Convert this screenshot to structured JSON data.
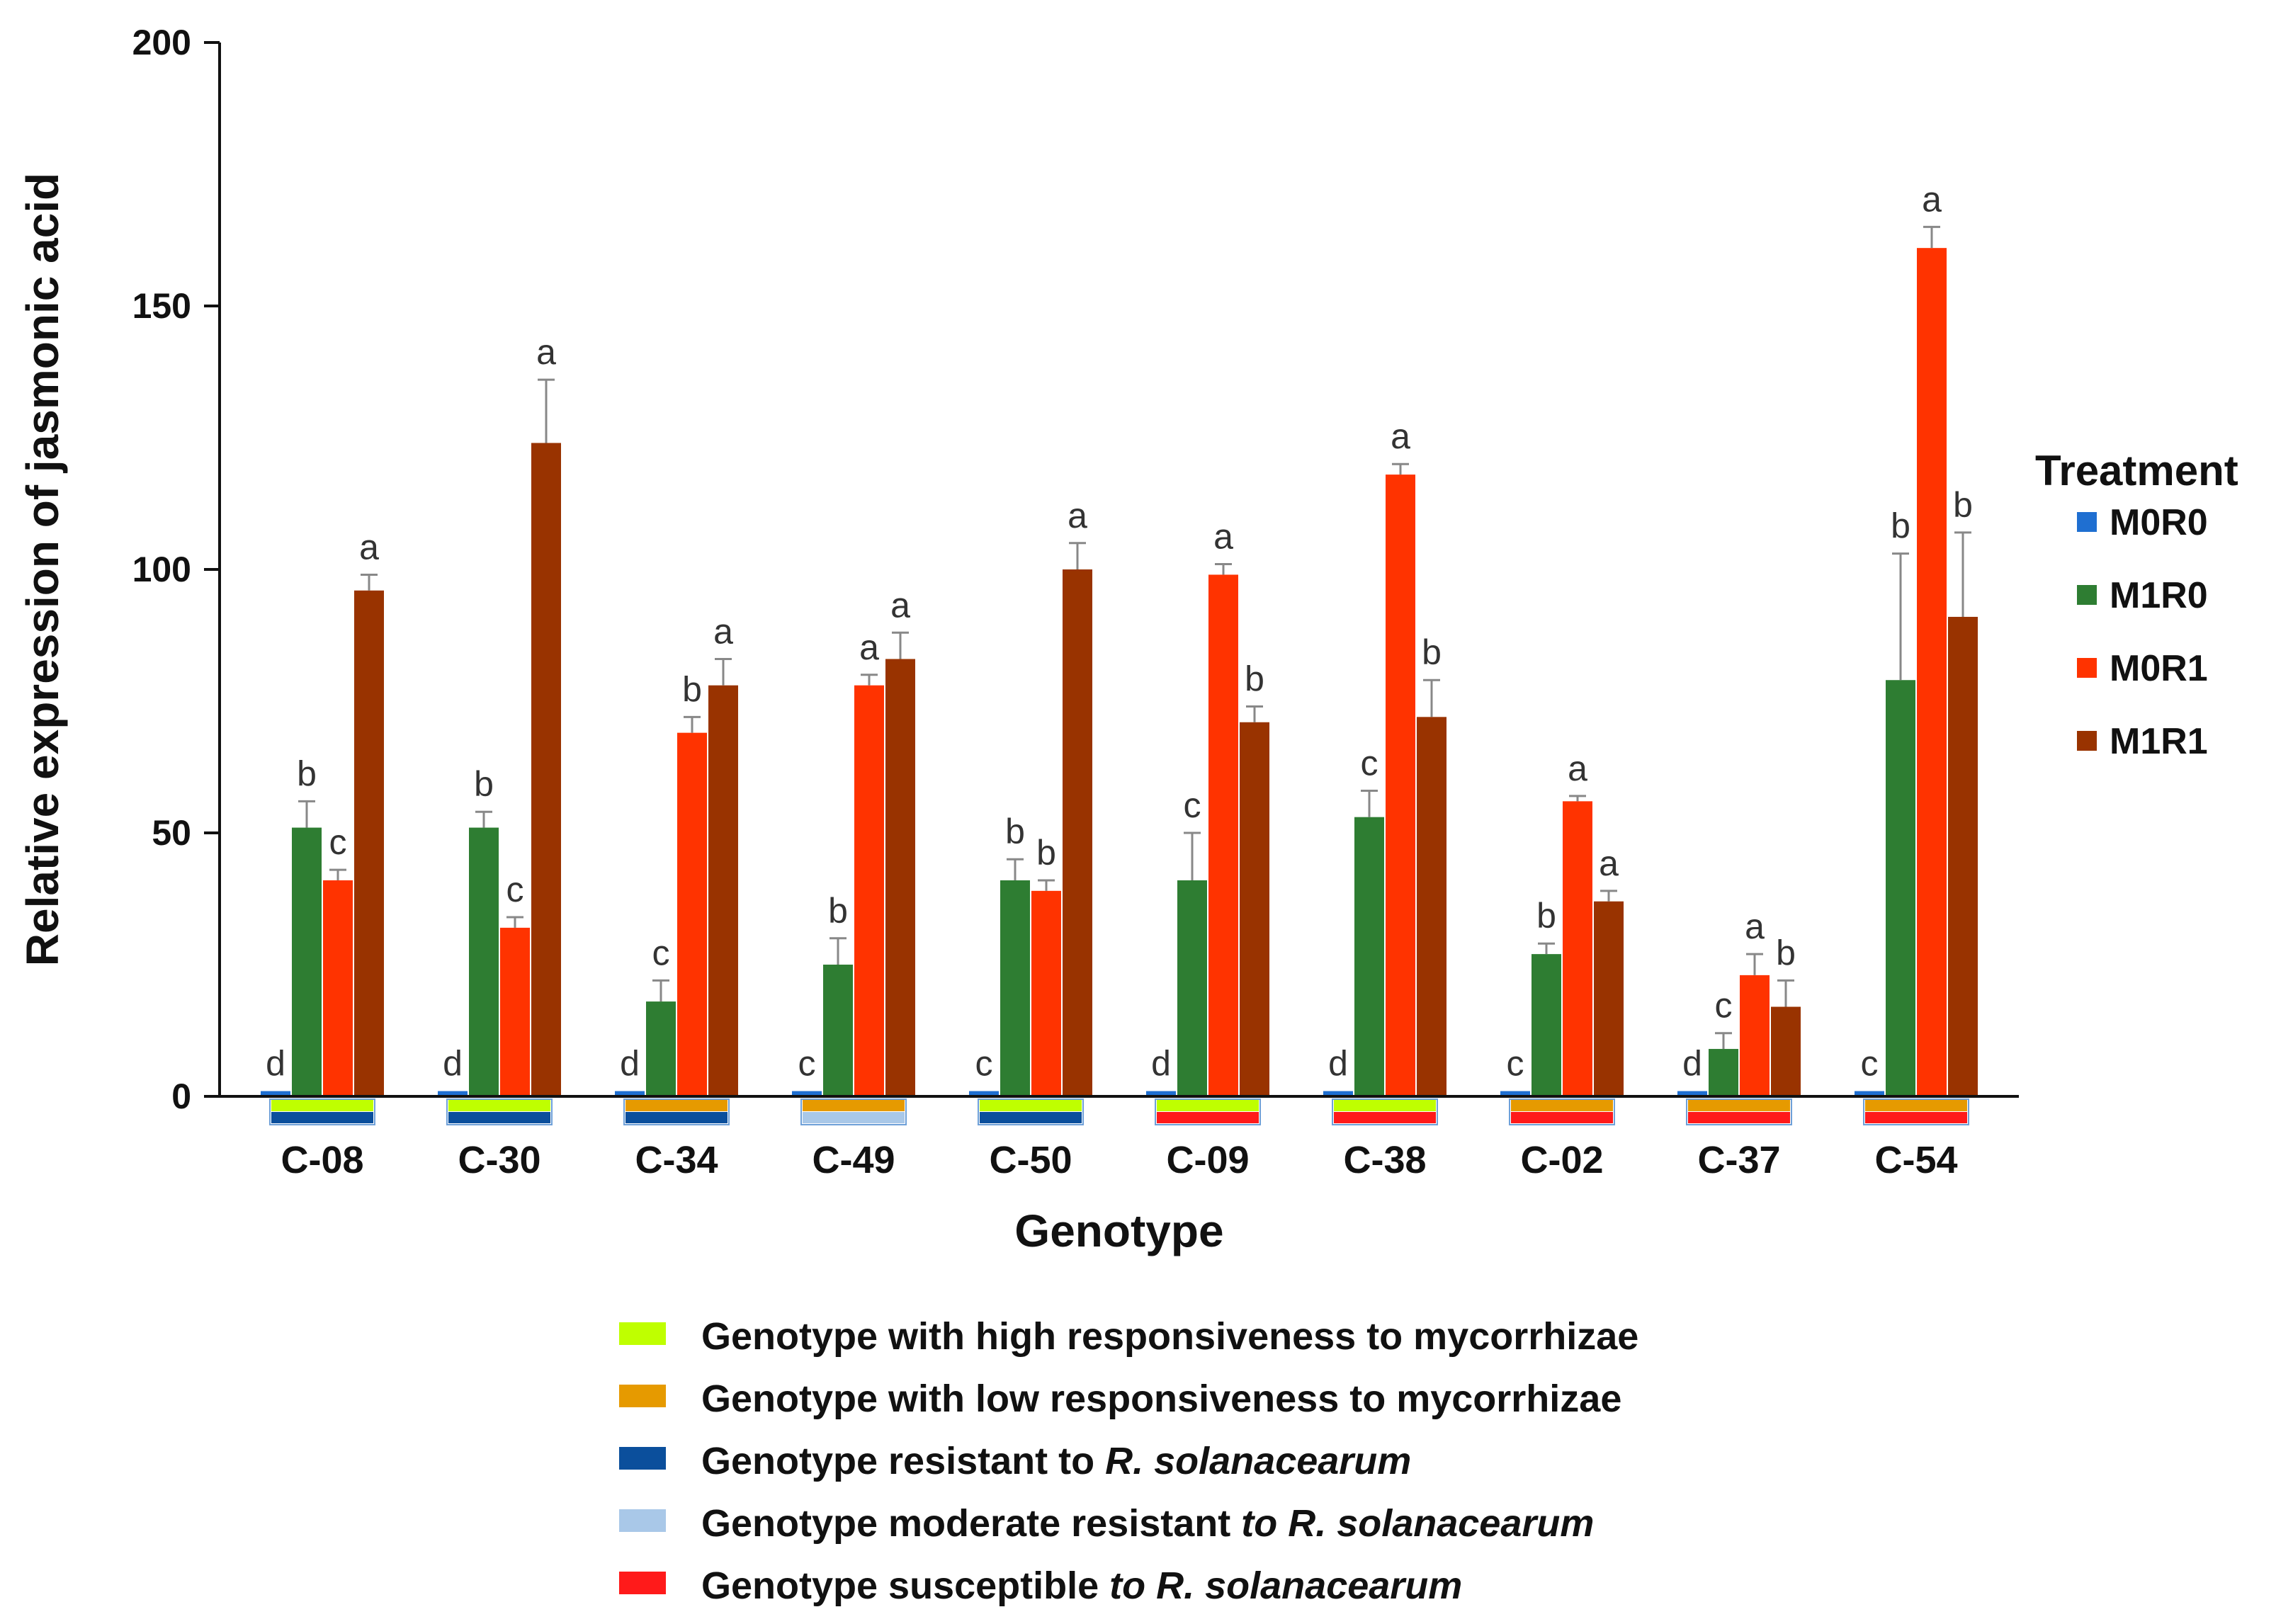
{
  "chart_data": {
    "type": "bar",
    "ylabel": "Relative expression of jasmonic acid",
    "xlabel": "Genotype",
    "ylim": [
      0,
      200
    ],
    "yticks": [
      "0",
      "50",
      "100",
      "150",
      "200"
    ],
    "categories": [
      "C-08",
      "C-30",
      "C-34",
      "C-49",
      "C-50",
      "C-09",
      "C-38",
      "C-02",
      "C-37",
      "C-54"
    ],
    "legend": {
      "title": "Treatment",
      "position": "right"
    },
    "series": [
      {
        "name": "M0R0",
        "color": "#1f6fd1",
        "values": [
          1,
          1,
          1,
          1,
          1,
          1,
          1,
          1,
          1,
          1
        ],
        "errors": [
          0,
          0,
          0,
          0,
          0,
          0,
          0,
          0,
          0,
          0
        ],
        "labels": [
          "d",
          "d",
          "d",
          "c",
          "c",
          "d",
          "d",
          "c",
          "d",
          "c"
        ]
      },
      {
        "name": "M1R0",
        "color": "#2e7d32",
        "values": [
          51,
          51,
          18,
          25,
          41,
          41,
          53,
          27,
          9,
          79
        ],
        "errors": [
          5,
          3,
          4,
          5,
          4,
          9,
          5,
          2,
          3,
          24
        ],
        "labels": [
          "b",
          "b",
          "c",
          "b",
          "b",
          "c",
          "c",
          "b",
          "c",
          "b"
        ]
      },
      {
        "name": "M0R1",
        "color": "#ff3300",
        "values": [
          41,
          32,
          69,
          78,
          39,
          99,
          118,
          56,
          23,
          161
        ],
        "errors": [
          2,
          2,
          3,
          2,
          2,
          2,
          2,
          1,
          4,
          4
        ],
        "labels": [
          "c",
          "c",
          "b",
          "a",
          "b",
          "a",
          "a",
          "a",
          "a",
          "a"
        ]
      },
      {
        "name": "M1R1",
        "color": "#993300",
        "values": [
          96,
          124,
          78,
          83,
          100,
          71,
          72,
          37,
          17,
          91
        ],
        "errors": [
          3,
          12,
          5,
          5,
          5,
          3,
          7,
          2,
          5,
          16
        ],
        "labels": [
          "a",
          "a",
          "a",
          "a",
          "a",
          "b",
          "b",
          "a",
          "b",
          "b"
        ]
      }
    ],
    "genotype_markers": {
      "responsiveness": [
        "high",
        "high",
        "low",
        "low",
        "high",
        "high",
        "high",
        "low",
        "low",
        "low"
      ],
      "resistance": [
        "resistant",
        "resistant",
        "resistant",
        "moderate",
        "resistant",
        "susceptible",
        "susceptible",
        "susceptible",
        "susceptible",
        "susceptible"
      ]
    },
    "marker_key": [
      {
        "id": "high",
        "color": "#bfff00",
        "text": "Genotype with high responsiveness to mycorrhizae",
        "italic": ""
      },
      {
        "id": "low",
        "color": "#e69a00",
        "text": "Genotype with low responsiveness to mycorrhizae",
        "italic": ""
      },
      {
        "id": "resistant",
        "color": "#0b4f9c",
        "text": "Genotype resistant to ",
        "italic": "R. solanacearum"
      },
      {
        "id": "moderate",
        "color": "#a9c8e8",
        "text": "Genotype moderate resistant ",
        "italic": "to R. solanacearum"
      },
      {
        "id": "susceptible",
        "color": "#ff1a1a",
        "text": "Genotype susceptible ",
        "italic": "to R. solanacearum"
      }
    ]
  }
}
